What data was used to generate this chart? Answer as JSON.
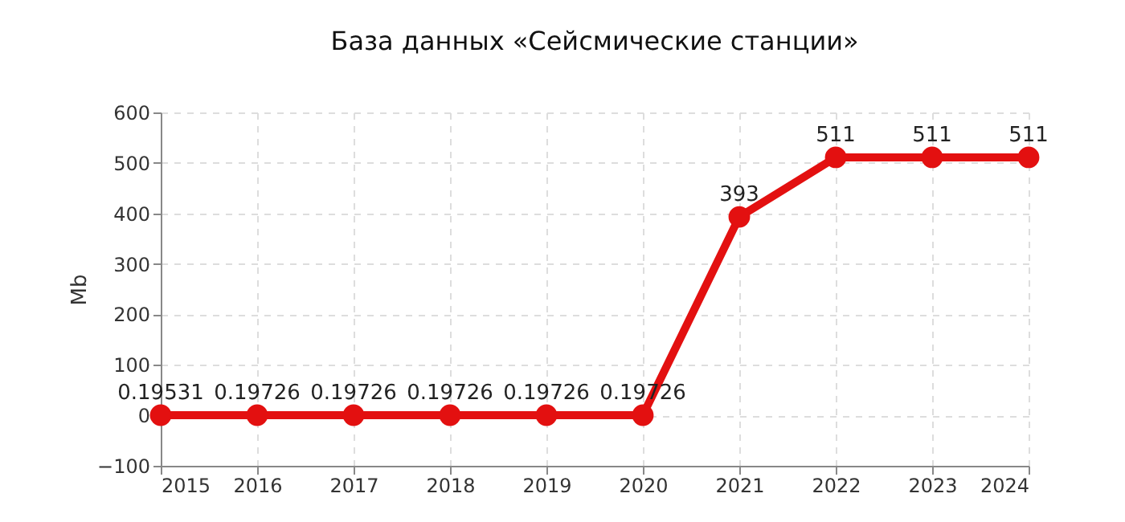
{
  "chart_data": {
    "type": "line",
    "title": "База данных «Сейсмические станции»",
    "ylabel": "Mb",
    "x": [
      2015,
      2016,
      2017,
      2018,
      2019,
      2020,
      2021,
      2022,
      2023,
      2024
    ],
    "series": [
      {
        "color": "#e31010",
        "values": [
          0.19531,
          0.19726,
          0.19726,
          0.19726,
          0.19726,
          0.19726,
          393,
          511,
          511,
          511
        ]
      }
    ],
    "xlim": [
      2015,
      2024
    ],
    "xticks": [
      2015,
      2016,
      2017,
      2018,
      2019,
      2020,
      2021,
      2022,
      2023,
      2024
    ],
    "ylim": [
      -100,
      600
    ],
    "yticks": [
      -100,
      0,
      100,
      200,
      300,
      400,
      500,
      600
    ],
    "grid": true,
    "marker": "circle",
    "line_style": "solid",
    "data_labels": true,
    "legend": false
  }
}
